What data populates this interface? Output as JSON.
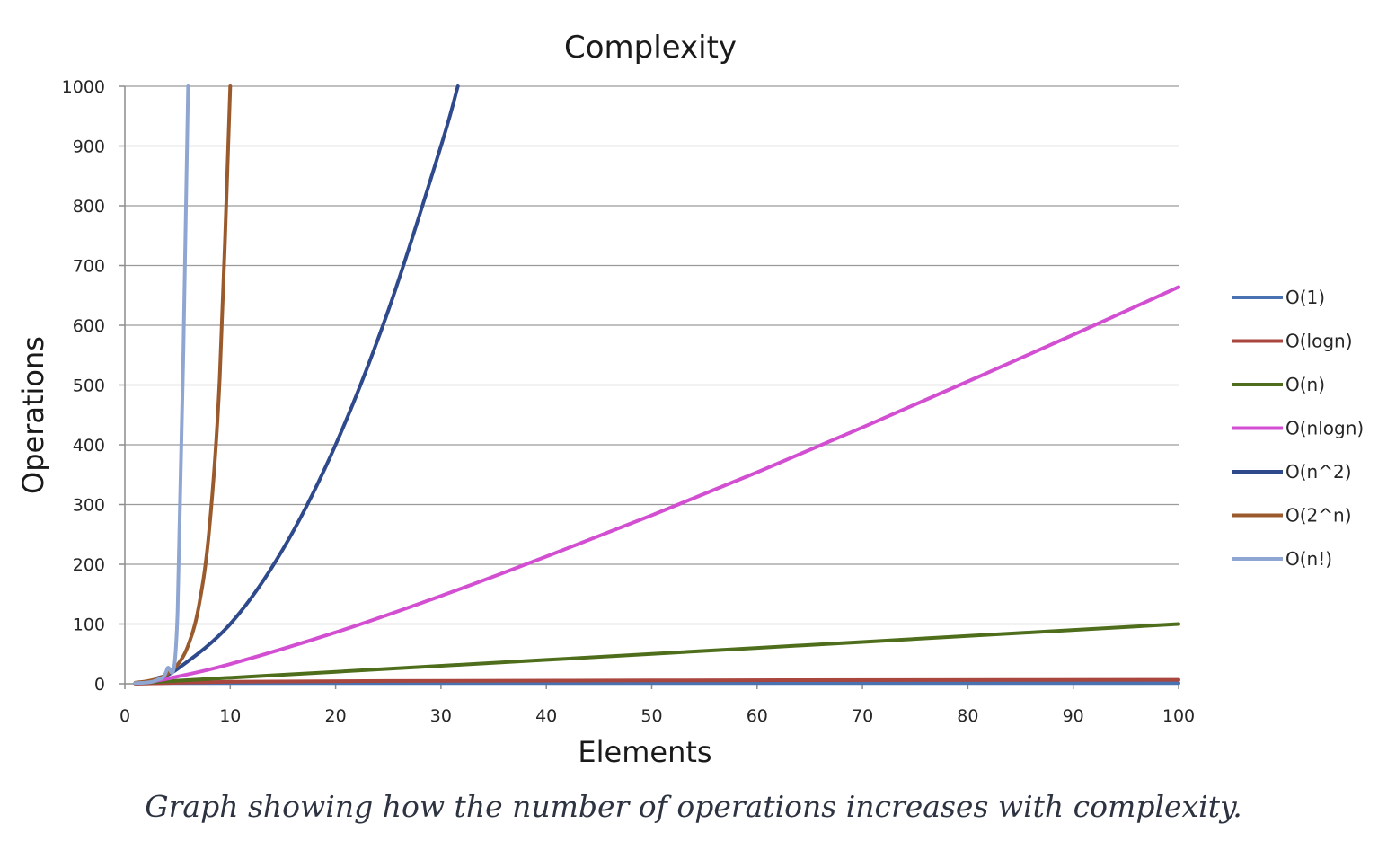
{
  "chart_data": {
    "type": "line",
    "title": "Complexity",
    "xlabel": "Elements",
    "ylabel": "Operations",
    "xlim": [
      0,
      100
    ],
    "ylim": [
      0,
      1000
    ],
    "xticks": [
      0,
      10,
      20,
      30,
      40,
      50,
      60,
      70,
      80,
      90,
      100
    ],
    "yticks": [
      0,
      100,
      200,
      300,
      400,
      500,
      600,
      700,
      800,
      900,
      1000
    ],
    "grid": "horizontal",
    "legend_position": "right",
    "series": [
      {
        "name": "O(1)",
        "color": "#4a72b0",
        "x": [
          1,
          100
        ],
        "y": [
          1,
          1
        ]
      },
      {
        "name": "O(logn)",
        "color": "#a9473f",
        "x": [
          1,
          10,
          25,
          50,
          75,
          100
        ],
        "y": [
          0,
          3.3,
          4.6,
          5.6,
          6.2,
          6.6
        ]
      },
      {
        "name": "O(n)",
        "color": "#4e6e1c",
        "x": [
          1,
          20,
          40,
          60,
          80,
          100
        ],
        "y": [
          1,
          20,
          40,
          60,
          80,
          100
        ]
      },
      {
        "name": "O(nlogn)",
        "color": "#d24fd2",
        "x": [
          2,
          5,
          10,
          20,
          30,
          40,
          50,
          60,
          70,
          80,
          90,
          100
        ],
        "y": [
          2,
          12,
          33,
          86,
          147,
          213,
          282,
          354,
          429,
          506,
          584,
          664
        ]
      },
      {
        "name": "O(n^2)",
        "color": "#2f4a8c",
        "x": [
          3,
          5,
          10,
          15,
          20,
          25,
          30,
          31.6
        ],
        "y": [
          9,
          25,
          100,
          225,
          400,
          625,
          900,
          1000
        ]
      },
      {
        "name": "O(2^n)",
        "color": "#9a5a2c",
        "x": [
          1,
          2,
          3,
          4,
          5,
          6,
          7,
          8,
          9,
          10
        ],
        "y": [
          2,
          4,
          8,
          16,
          32,
          64,
          128,
          256,
          512,
          1000
        ]
      },
      {
        "name": "O(n!)",
        "color": "#8fa6d2",
        "x": [
          1,
          2,
          3,
          4,
          5,
          6
        ],
        "y": [
          1,
          2,
          6,
          24,
          120,
          1000
        ]
      }
    ]
  },
  "caption": "Graph showing how the number of operations increases with complexity."
}
